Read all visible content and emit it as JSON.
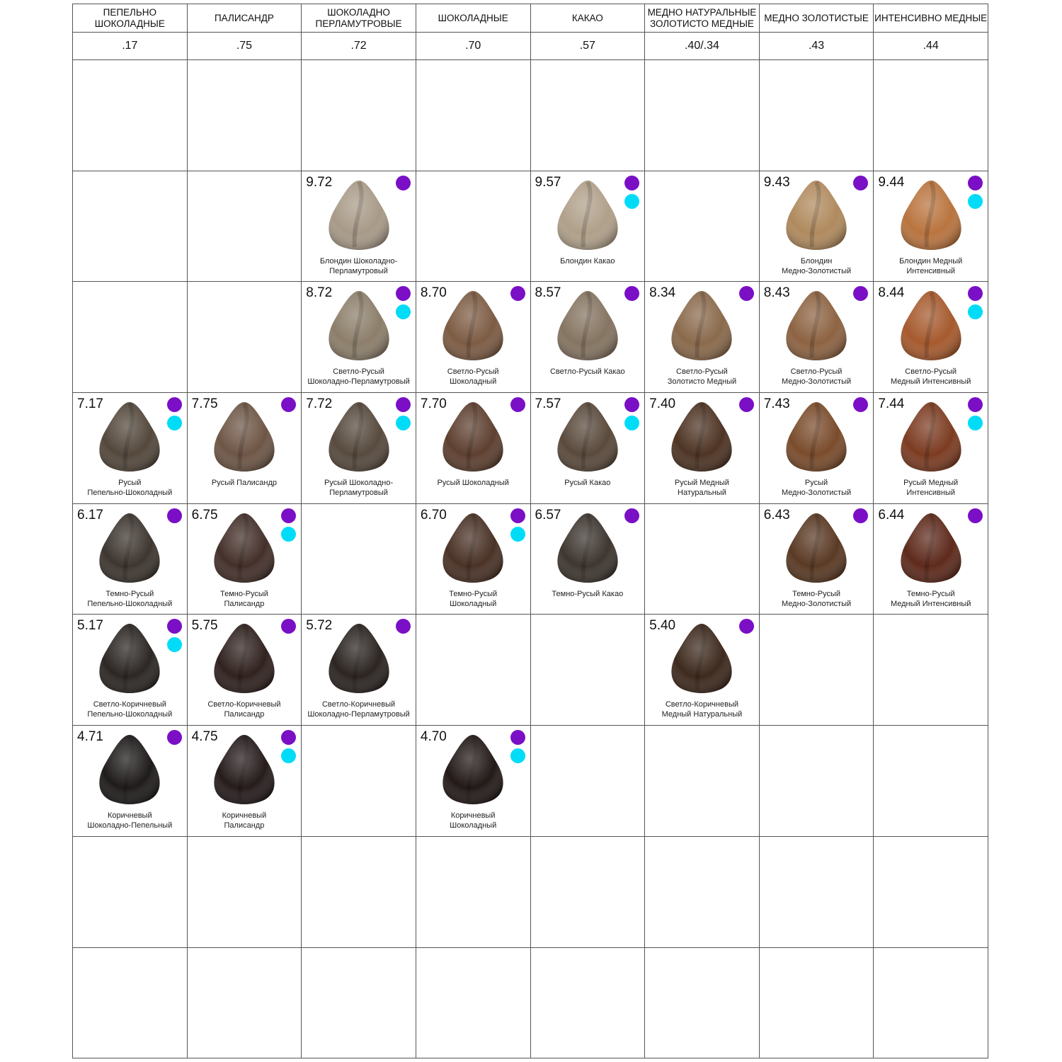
{
  "colors": {
    "purple": "#7a0fc6",
    "cyan": "#00dcf7"
  },
  "columns": [
    {
      "header": "ПЕПЕЛЬНО ШОКОЛАДНЫЕ",
      "code": ".17"
    },
    {
      "header": "ПАЛИСАНДР",
      "code": ".75"
    },
    {
      "header": "ШОКОЛАДНО ПЕРЛАМУТРОВЫЕ",
      "code": ".72"
    },
    {
      "header": "ШОКОЛАДНЫЕ",
      "code": ".70"
    },
    {
      "header": "КАКАО",
      "code": ".57"
    },
    {
      "header": "МЕДНО НАТУРАЛЬНЫЕ ЗОЛОТИСТО МЕДНЫЕ",
      "code": ".40/.34"
    },
    {
      "header": "МЕДНО ЗОЛОТИСТЫЕ",
      "code": ".43"
    },
    {
      "header": "ИНТЕНСИВНО МЕДНЫЕ",
      "code": ".44"
    }
  ],
  "rows": [
    [
      null,
      null,
      null,
      null,
      null,
      null,
      null,
      null
    ],
    [
      null,
      null,
      {
        "code": "9.72",
        "name": [
          "Блондин Шоколадно-",
          "Перламутровый"
        ],
        "dots": [
          "purple"
        ],
        "color": "#a89a88"
      },
      null,
      {
        "code": "9.57",
        "name": [
          "Блондин Какао"
        ],
        "dots": [
          "purple",
          "cyan"
        ],
        "color": "#b0a08a"
      },
      null,
      {
        "code": "9.43",
        "name": [
          "Блондин",
          "Медно-Золотистый"
        ],
        "dots": [
          "purple"
        ],
        "color": "#b08a5e"
      },
      {
        "code": "9.44",
        "name": [
          "Блондин Медный",
          "Интенсивный"
        ],
        "dots": [
          "purple",
          "cyan"
        ],
        "color": "#b9743f"
      }
    ],
    [
      null,
      null,
      {
        "code": "8.72",
        "name": [
          "Светло-Русый",
          "Шоколадно-Перламутровый"
        ],
        "dots": [
          "purple",
          "cyan"
        ],
        "color": "#8c7e6a"
      },
      {
        "code": "8.70",
        "name": [
          "Светло-Русый",
          "Шоколадный"
        ],
        "dots": [
          "purple"
        ],
        "color": "#7d5c44"
      },
      {
        "code": "8.57",
        "name": [
          "Светло-Русый Какао"
        ],
        "dots": [
          "purple"
        ],
        "color": "#857461"
      },
      {
        "code": "8.34",
        "name": [
          "Светло-Русый",
          "Золотисто Медный"
        ],
        "dots": [
          "purple"
        ],
        "color": "#8a6a4c"
      },
      {
        "code": "8.43",
        "name": [
          "Светло-Русый",
          "Медно-Золотистый"
        ],
        "dots": [
          "purple"
        ],
        "color": "#8d6342"
      },
      {
        "code": "8.44",
        "name": [
          "Светло-Русый",
          "Медный Интенсивный"
        ],
        "dots": [
          "purple",
          "cyan"
        ],
        "color": "#a65a2e"
      }
    ],
    [
      {
        "code": "7.17",
        "name": [
          "Русый",
          "Пепельно-Шоколадный"
        ],
        "dots": [
          "purple",
          "cyan"
        ],
        "color": "#54483c"
      },
      {
        "code": "7.75",
        "name": [
          "Русый Палисандр"
        ],
        "dots": [
          "purple"
        ],
        "color": "#6e5646"
      },
      {
        "code": "7.72",
        "name": [
          "Русый Шоколадно-",
          "Перламутровый"
        ],
        "dots": [
          "purple",
          "cyan"
        ],
        "color": "#574a3e"
      },
      {
        "code": "7.70",
        "name": [
          "Русый Шоколадный"
        ],
        "dots": [
          "purple"
        ],
        "color": "#5e4030"
      },
      {
        "code": "7.57",
        "name": [
          "Русый Какао"
        ],
        "dots": [
          "purple",
          "cyan"
        ],
        "color": "#5a4a3c"
      },
      {
        "code": "7.40",
        "name": [
          "Русый Медный",
          "Натуральный"
        ],
        "dots": [
          "purple"
        ],
        "color": "#4e3424"
      },
      {
        "code": "7.43",
        "name": [
          "Русый",
          "Медно-Золотистый"
        ],
        "dots": [
          "purple"
        ],
        "color": "#7a4c2c"
      },
      {
        "code": "7.44",
        "name": [
          "Русый Медный",
          "Интенсивный"
        ],
        "dots": [
          "purple",
          "cyan"
        ],
        "color": "#7c3c22"
      }
    ],
    [
      {
        "code": "6.17",
        "name": [
          "Темно-Русый",
          "Пепельно-Шоколадный"
        ],
        "dots": [
          "purple"
        ],
        "color": "#3e3630"
      },
      {
        "code": "6.75",
        "name": [
          "Темно-Русый",
          "Палисандр"
        ],
        "dots": [
          "purple",
          "cyan"
        ],
        "color": "#44302a"
      },
      null,
      {
        "code": "6.70",
        "name": [
          "Темно-Русый",
          "Шоколадный"
        ],
        "dots": [
          "purple",
          "cyan"
        ],
        "color": "#4a3226"
      },
      {
        "code": "6.57",
        "name": [
          "Темно-Русый Какао"
        ],
        "dots": [
          "purple"
        ],
        "color": "#3e3630"
      },
      null,
      {
        "code": "6.43",
        "name": [
          "Темно-Русый",
          "Медно-Золотистый"
        ],
        "dots": [
          "purple"
        ],
        "color": "#5a3a24"
      },
      {
        "code": "6.44",
        "name": [
          "Темно-Русый",
          "Медный Интенсивный"
        ],
        "dots": [
          "purple"
        ],
        "color": "#5e2a1c"
      }
    ],
    [
      {
        "code": "5.17",
        "name": [
          "Светло-Коричневый",
          "Пепельно-Шоколадный"
        ],
        "dots": [
          "purple",
          "cyan"
        ],
        "color": "#2c2724"
      },
      {
        "code": "5.75",
        "name": [
          "Светло-Коричневый",
          "Палисандр"
        ],
        "dots": [
          "purple"
        ],
        "color": "#30221f"
      },
      {
        "code": "5.72",
        "name": [
          "Светло-Коричневый",
          "Шоколадно-Перламутровый"
        ],
        "dots": [
          "purple"
        ],
        "color": "#2c2522"
      },
      null,
      null,
      {
        "code": "5.40",
        "name": [
          "Светло-Коричневый",
          "Медный Натуральный"
        ],
        "dots": [
          "purple"
        ],
        "color": "#3e2a1e"
      },
      null,
      null
    ],
    [
      {
        "code": "4.71",
        "name": [
          "Коричневый",
          "Шоколадно-Пепельный"
        ],
        "dots": [
          "purple"
        ],
        "color": "#1f1b1b"
      },
      {
        "code": "4.75",
        "name": [
          "Коричневый",
          "Палисандр"
        ],
        "dots": [
          "purple",
          "cyan"
        ],
        "color": "#261c1c"
      },
      null,
      {
        "code": "4.70",
        "name": [
          "Коричневый",
          "Шоколадный"
        ],
        "dots": [
          "purple",
          "cyan"
        ],
        "color": "#231a18"
      },
      null,
      null,
      null,
      null
    ],
    [
      null,
      null,
      null,
      null,
      null,
      null,
      null,
      null
    ],
    [
      null,
      null,
      null,
      null,
      null,
      null,
      null,
      null
    ]
  ]
}
